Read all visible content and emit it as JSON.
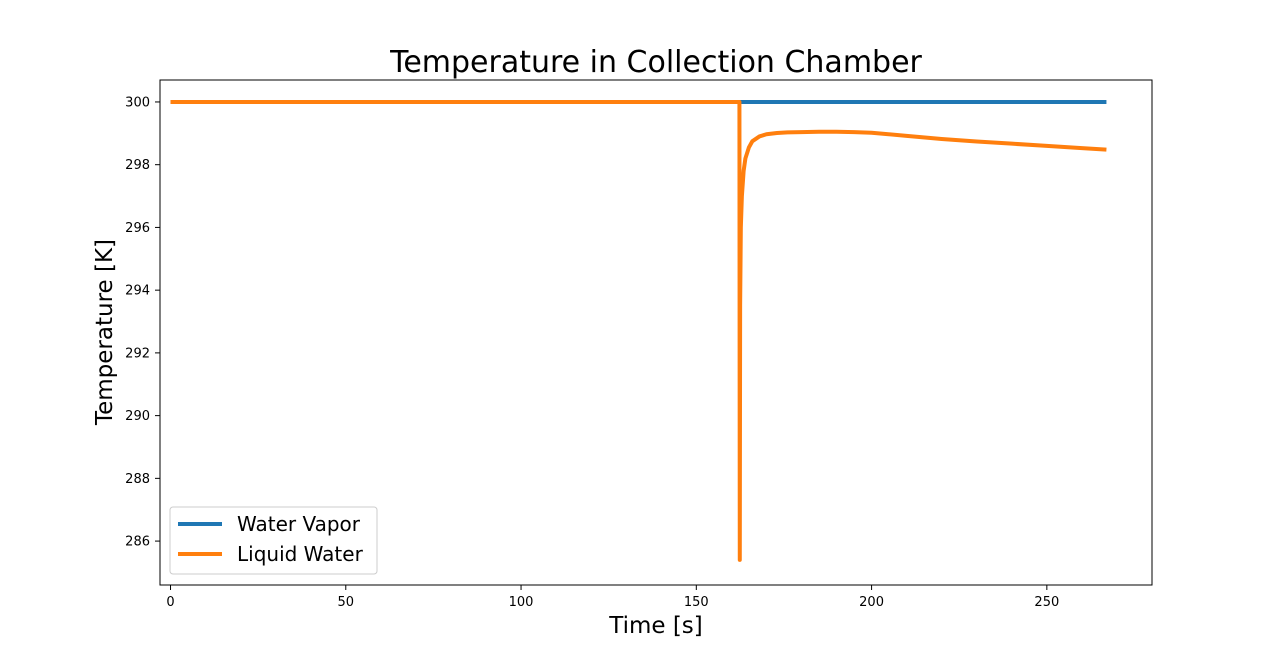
{
  "chart_data": {
    "type": "line",
    "title": "Temperature in Collection Chamber",
    "xlabel": "Time [s]",
    "ylabel": "Temperature [K]",
    "xlim": [
      -3,
      280
    ],
    "ylim": [
      284.6,
      300.7
    ],
    "xticks": [
      0,
      50,
      100,
      150,
      200,
      250
    ],
    "yticks": [
      286,
      288,
      290,
      292,
      294,
      296,
      298,
      300
    ],
    "grid": false,
    "legend_position": "lower-left",
    "series": [
      {
        "name": "Water Vapor",
        "color": "#1f77b4",
        "x": [
          0,
          267
        ],
        "y": [
          300.0,
          300.0
        ]
      },
      {
        "name": "Liquid Water",
        "color": "#ff7f0e",
        "x": [
          0,
          162.3,
          162.4,
          162.5,
          162.7,
          163.0,
          163.5,
          164,
          165,
          166,
          168,
          170,
          173,
          176,
          180,
          185,
          190,
          195,
          200,
          210,
          220,
          230,
          240,
          250,
          260,
          267
        ],
        "y": [
          300.0,
          300.0,
          285.4,
          293.5,
          296.0,
          297.0,
          297.8,
          298.2,
          298.55,
          298.75,
          298.9,
          298.97,
          299.01,
          299.03,
          299.04,
          299.05,
          299.05,
          299.04,
          299.02,
          298.92,
          298.82,
          298.74,
          298.67,
          298.6,
          298.53,
          298.48
        ]
      }
    ]
  }
}
